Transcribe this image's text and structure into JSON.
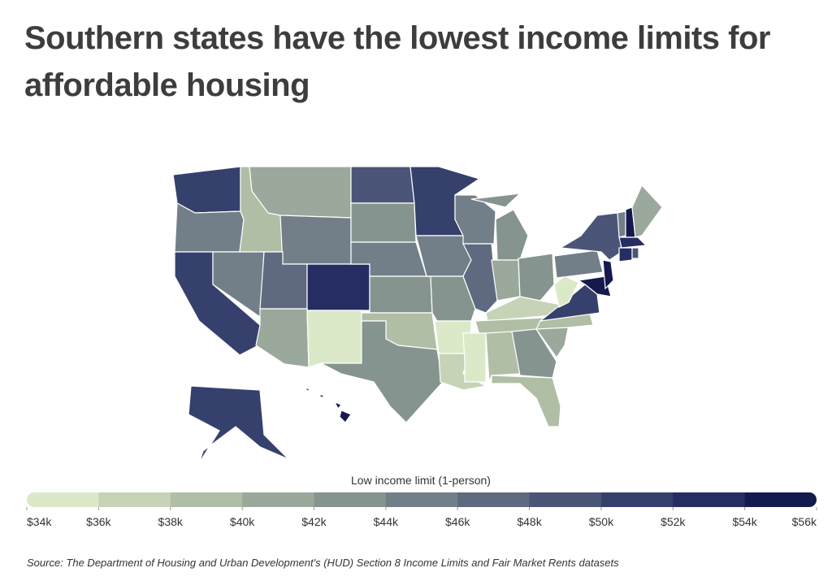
{
  "chart_data": {
    "type": "choropleth",
    "title": "Southern states have the lowest income limits for affordable housing",
    "legend_title": "Low income limit (1-person)",
    "source": "Source:  The Department of Housing and Urban Development's (HUD) Section 8 Income Limits and Fair Market Rents datasets",
    "colors": [
      "#dce9c8",
      "#c6d3b6",
      "#b0bea5",
      "#9aa99b",
      "#86948f",
      "#737f88",
      "#5f6a80",
      "#4b5578",
      "#36406d",
      "#252d62",
      "#141a4d"
    ],
    "ticks": [
      {
        "value": 34000,
        "label": "$34k"
      },
      {
        "value": 36000,
        "label": "$36k"
      },
      {
        "value": 38000,
        "label": "$38k"
      },
      {
        "value": 40000,
        "label": "$40k"
      },
      {
        "value": 42000,
        "label": "$42k"
      },
      {
        "value": 44000,
        "label": "$44k"
      },
      {
        "value": 46000,
        "label": "$46k"
      },
      {
        "value": 48000,
        "label": "$48k"
      },
      {
        "value": 50000,
        "label": "$50k"
      },
      {
        "value": 52000,
        "label": "$52k"
      },
      {
        "value": 54000,
        "label": "$54k"
      },
      {
        "value": 56000,
        "label": "$56k"
      }
    ],
    "values": [
      51000,
      45000,
      51000,
      39000,
      45000,
      41000,
      45000,
      47000,
      53000,
      41000,
      35000,
      49000,
      43000,
      45000,
      43000,
      39000,
      43000,
      51000,
      45000,
      43000,
      35000,
      37000,
      45000,
      47000,
      43000,
      41000,
      43000,
      37000,
      39000,
      35000,
      39000,
      43000,
      39000,
      41000,
      39000,
      51000,
      35000,
      45000,
      49000,
      55000,
      55000,
      45000,
      55000,
      41000,
      53000,
      53000,
      49000,
      51000,
      55000
    ]
  }
}
